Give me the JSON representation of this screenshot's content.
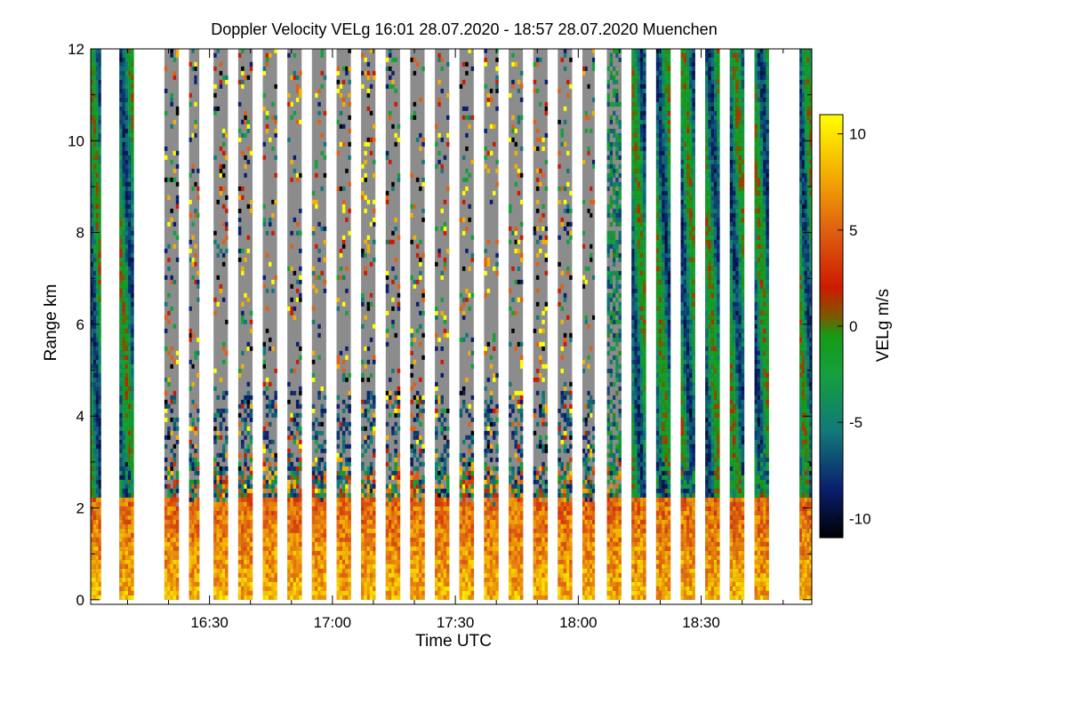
{
  "chart_data": {
    "type": "heatmap",
    "title": "Doppler Velocity VELg   16:01 28.07.2020 - 18:57 28.07.2020 Muenchen",
    "xlabel": "Time UTC",
    "ylabel": "Range km",
    "xlim_minutes_utc": [
      961,
      1137
    ],
    "ylim": [
      -0.1,
      12
    ],
    "x_ticks": [
      {
        "minute": 990,
        "label": "16:30"
      },
      {
        "minute": 1020,
        "label": "17:00"
      },
      {
        "minute": 1050,
        "label": "17:30"
      },
      {
        "minute": 1080,
        "label": "18:00"
      },
      {
        "minute": 1110,
        "label": "18:30"
      }
    ],
    "x_minor_ticks_minutes": [
      970,
      980,
      1000,
      1010,
      1030,
      1040,
      1060,
      1070,
      1090,
      1100,
      1120,
      1130
    ],
    "y_ticks": [
      {
        "value": 0,
        "label": "0"
      },
      {
        "value": 2,
        "label": "2"
      },
      {
        "value": 4,
        "label": "4"
      },
      {
        "value": 6,
        "label": "6"
      },
      {
        "value": 8,
        "label": "8"
      },
      {
        "value": 10,
        "label": "10"
      },
      {
        "value": 12,
        "label": "12"
      }
    ],
    "colorbar": {
      "label": "VELg m/s",
      "range": [
        -11,
        11
      ],
      "ticks": [
        {
          "value": 10,
          "label": "10"
        },
        {
          "value": 5,
          "label": "5"
        },
        {
          "value": 0,
          "label": "0"
        },
        {
          "value": -5,
          "label": "-5"
        },
        {
          "value": -10,
          "label": "-10"
        }
      ],
      "colormap": [
        {
          "value": -11,
          "color": "#000000"
        },
        {
          "value": -8.5,
          "color": "#0a1e6e"
        },
        {
          "value": -5.5,
          "color": "#127878"
        },
        {
          "value": -2.5,
          "color": "#14a03c"
        },
        {
          "value": -0.5,
          "color": "#169a16"
        },
        {
          "value": 0.5,
          "color": "#7a5a00"
        },
        {
          "value": 2.0,
          "color": "#cc1a00"
        },
        {
          "value": 5.0,
          "color": "#e06010"
        },
        {
          "value": 8.0,
          "color": "#f4b000"
        },
        {
          "value": 11,
          "color": "#ffff00"
        }
      ]
    },
    "noise_color": "#8c8c8c",
    "scan_segments": [
      {
        "start": 961.0,
        "end": 963.5,
        "mode": "cloud"
      },
      {
        "start": 968.0,
        "end": 971.5,
        "mode": "cloud"
      },
      {
        "start": 979.0,
        "end": 982.5,
        "mode": "noise"
      },
      {
        "start": 985.0,
        "end": 987.5,
        "mode": "noise"
      },
      {
        "start": 991.0,
        "end": 994.5,
        "mode": "noise"
      },
      {
        "start": 997.0,
        "end": 1000.5,
        "mode": "noise"
      },
      {
        "start": 1003.0,
        "end": 1006.5,
        "mode": "noise"
      },
      {
        "start": 1009.0,
        "end": 1012.5,
        "mode": "noise"
      },
      {
        "start": 1015.0,
        "end": 1018.5,
        "mode": "noise"
      },
      {
        "start": 1021.0,
        "end": 1024.5,
        "mode": "noise"
      },
      {
        "start": 1027.0,
        "end": 1030.5,
        "mode": "noise"
      },
      {
        "start": 1033.0,
        "end": 1036.5,
        "mode": "noise"
      },
      {
        "start": 1039.0,
        "end": 1042.5,
        "mode": "noise"
      },
      {
        "start": 1045.0,
        "end": 1048.5,
        "mode": "noise"
      },
      {
        "start": 1051.0,
        "end": 1054.5,
        "mode": "noise"
      },
      {
        "start": 1057.0,
        "end": 1060.5,
        "mode": "noise"
      },
      {
        "start": 1063.0,
        "end": 1066.5,
        "mode": "noise"
      },
      {
        "start": 1069.0,
        "end": 1072.5,
        "mode": "noise"
      },
      {
        "start": 1075.0,
        "end": 1078.5,
        "mode": "noise"
      },
      {
        "start": 1081.0,
        "end": 1084.0,
        "mode": "noise"
      },
      {
        "start": 1087.0,
        "end": 1090.5,
        "mode": "mixed"
      },
      {
        "start": 1093.0,
        "end": 1096.5,
        "mode": "cloud"
      },
      {
        "start": 1099.0,
        "end": 1102.5,
        "mode": "cloud"
      },
      {
        "start": 1105.0,
        "end": 1108.5,
        "mode": "cloud"
      },
      {
        "start": 1111.0,
        "end": 1114.5,
        "mode": "cloud"
      },
      {
        "start": 1117.0,
        "end": 1120.5,
        "mode": "cloud"
      },
      {
        "start": 1123.0,
        "end": 1126.5,
        "mode": "cloud"
      },
      {
        "start": 1134.0,
        "end": 1137.0,
        "mode": "cloud"
      }
    ]
  }
}
